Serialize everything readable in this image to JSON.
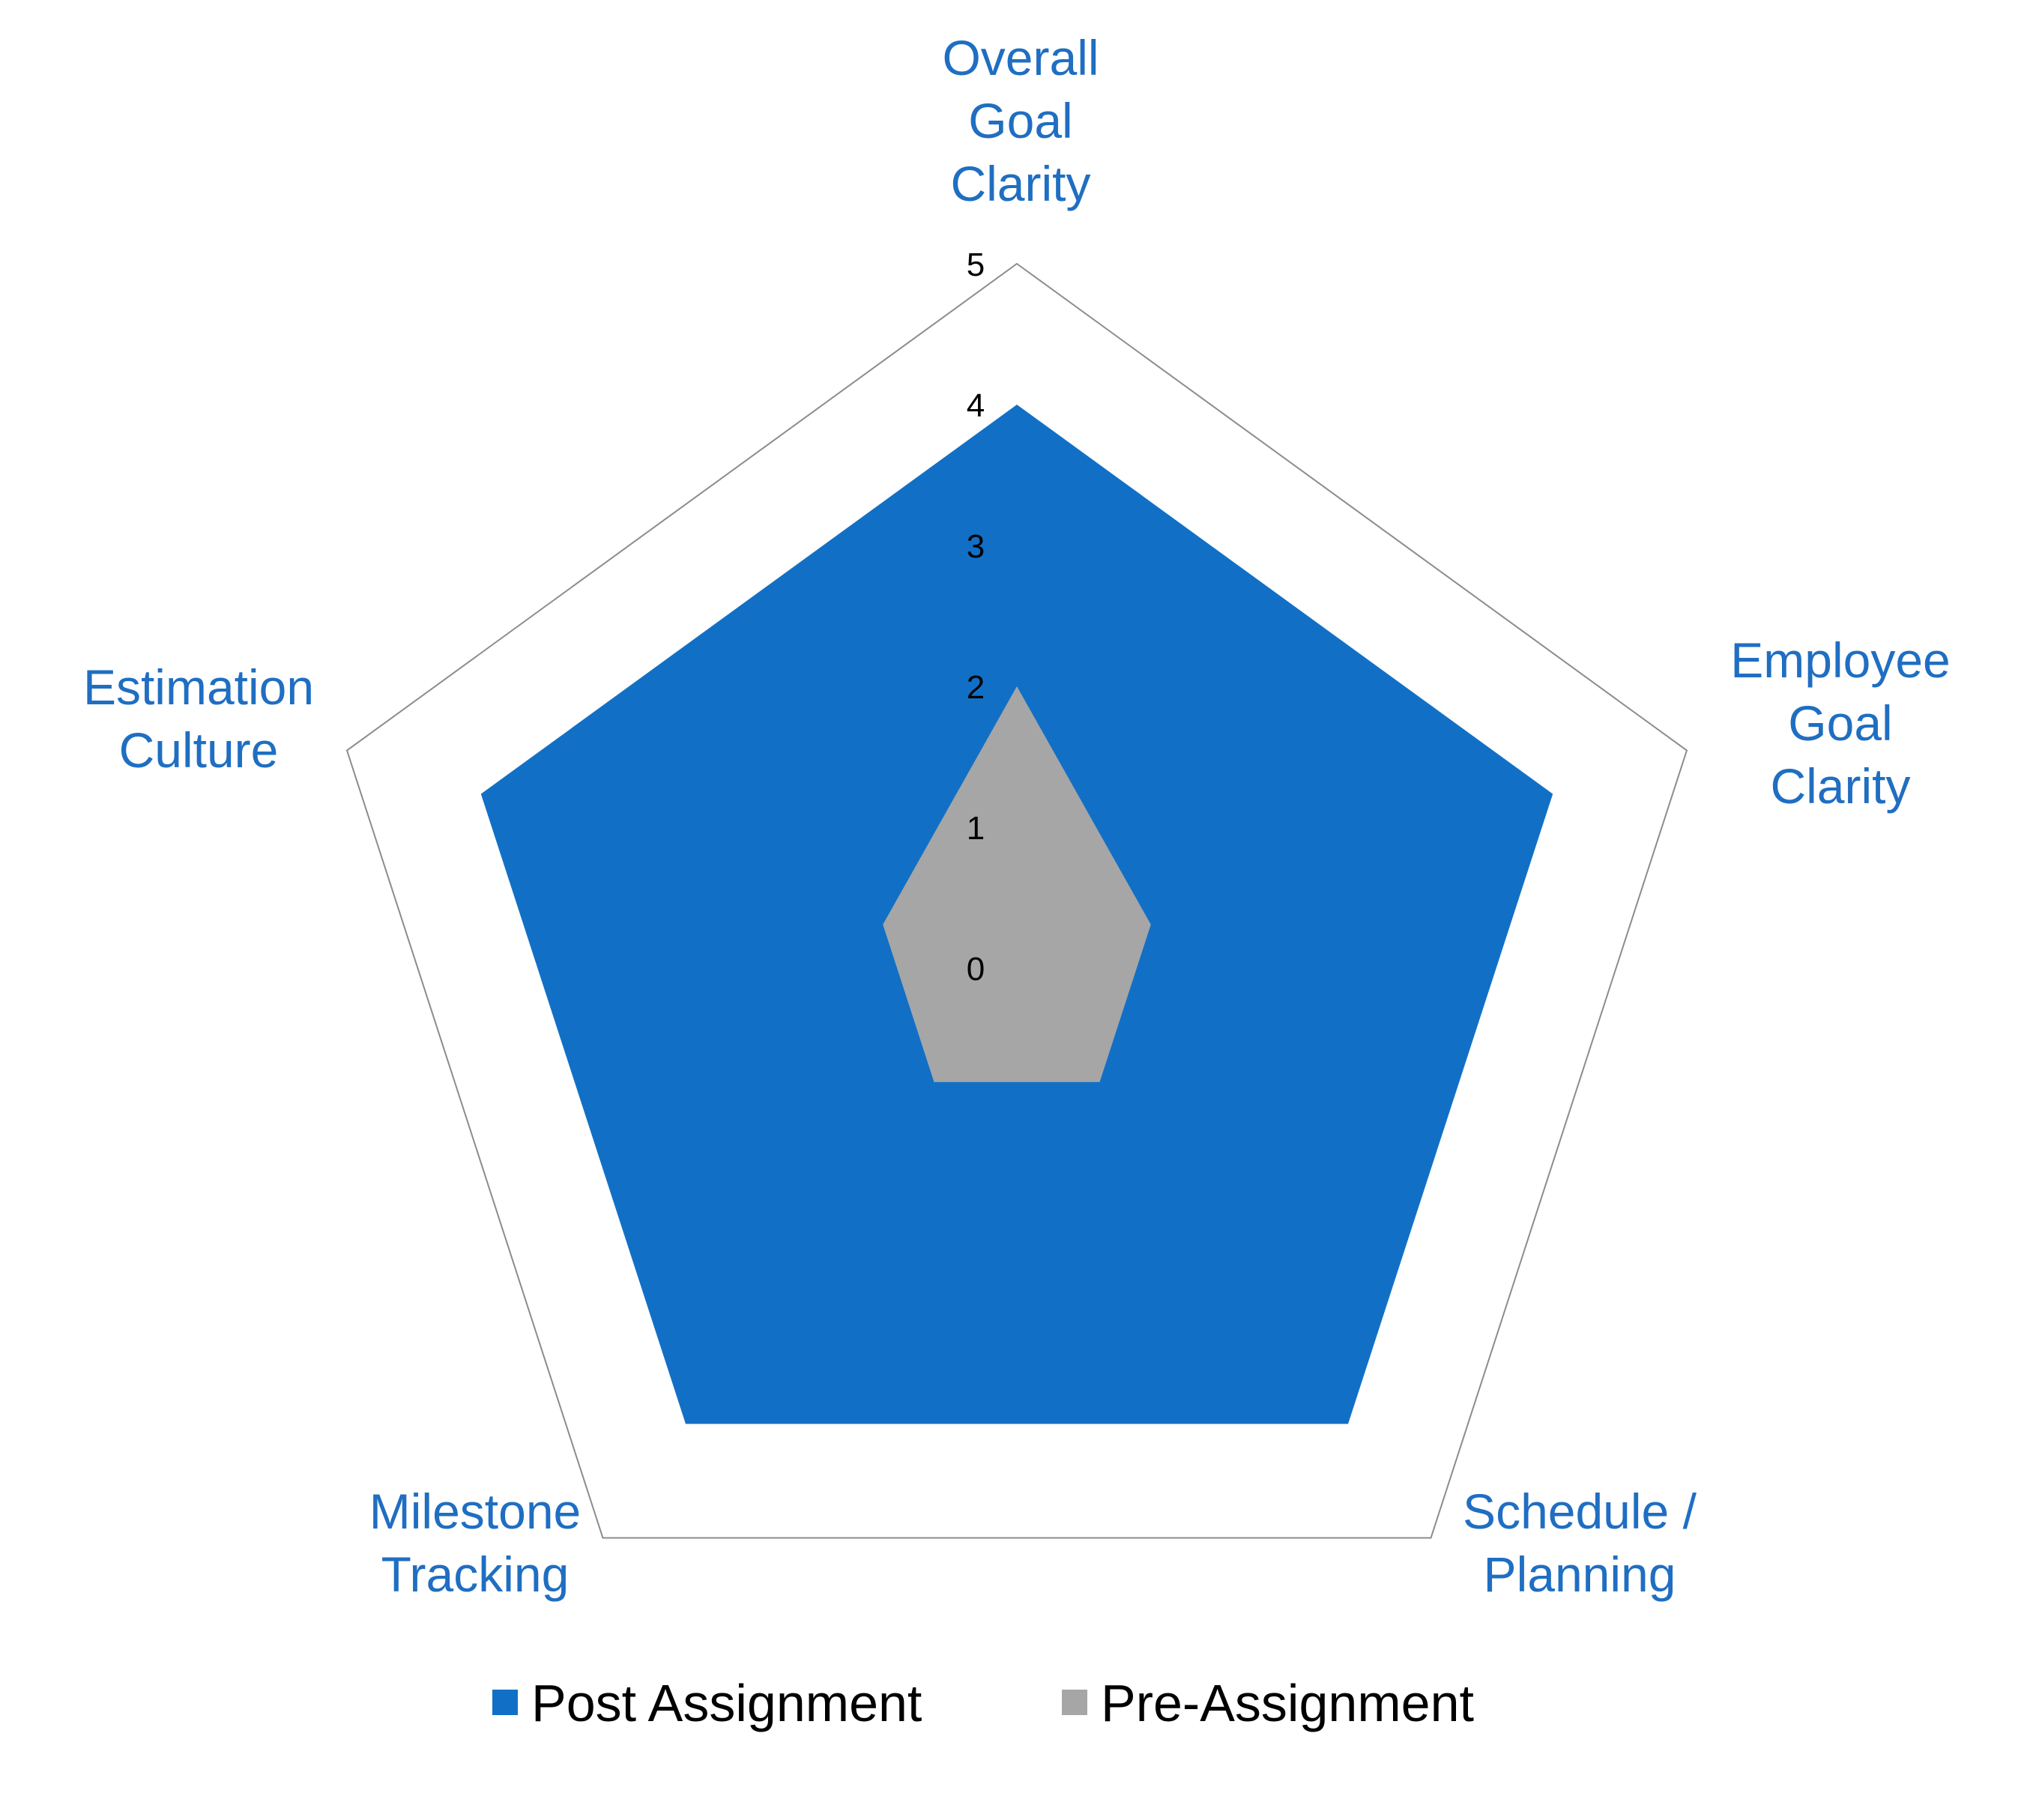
{
  "chart_data": {
    "type": "radar",
    "categories": [
      [
        "Overall",
        "Goal",
        "Clarity"
      ],
      [
        "Employee",
        "Goal",
        "Clarity"
      ],
      [
        "Schedule /",
        "Planning"
      ],
      [
        "Milestone",
        "Tracking"
      ],
      [
        "Estimation",
        "Culture"
      ]
    ],
    "rlim": [
      0,
      5
    ],
    "ticks": [
      "0",
      "1",
      "2",
      "3",
      "4",
      "5"
    ],
    "grid": "outer ring at 5 only",
    "series": [
      {
        "name": "Post Assignment",
        "values": [
          4,
          4,
          4,
          4,
          4
        ],
        "color": "#1170c6"
      },
      {
        "name": "Pre-Assignment",
        "values": [
          2,
          1,
          1,
          1,
          1
        ],
        "color": "#a6a6a6"
      }
    ],
    "colors": {
      "label": "#1f6ec2",
      "grid": "#8c8c8c"
    },
    "legend_position": "bottom"
  }
}
